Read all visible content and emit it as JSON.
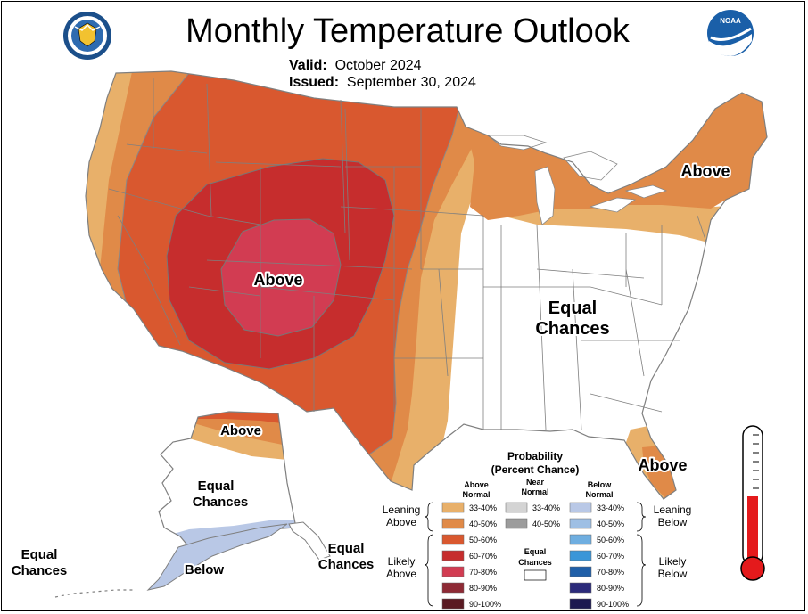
{
  "header": {
    "title": "Monthly Temperature Outlook",
    "valid_label": "Valid:",
    "valid_value": "October 2024",
    "issued_label": "Issued:",
    "issued_value": "September 30, 2024"
  },
  "logos": {
    "left": "doc-seal-icon",
    "right": "noaa-logo-icon",
    "noaa_text": "NOAA"
  },
  "map_labels": {
    "west_above": "Above",
    "northeast_above": "Above",
    "florida_above": "Above",
    "east_equal_line1": "Equal",
    "east_equal_line2": "Chances",
    "alaska_above": "Above",
    "alaska_equal_line1": "Equal",
    "alaska_equal_line2": "Chances",
    "alaska_below": "Below",
    "aleutian_equal_line1": "Equal",
    "aleutian_equal_line2": "Chances",
    "southeast_ak_equal_line1": "Equal",
    "southeast_ak_equal_line2": "Chances"
  },
  "legend": {
    "title_line1": "Probability",
    "title_line2": "(Percent Chance)",
    "col_above_line1": "Above",
    "col_above_line2": "Normal",
    "col_near_line1": "Near",
    "col_near_line2": "Normal",
    "col_below_line1": "Below",
    "col_below_line2": "Normal",
    "leaning_above_line1": "Leaning",
    "leaning_above_line2": "Above",
    "likely_above_line1": "Likely",
    "likely_above_line2": "Above",
    "leaning_below_line1": "Leaning",
    "leaning_below_line2": "Below",
    "likely_below_line1": "Likely",
    "likely_below_line2": "Below",
    "equal_line1": "Equal",
    "equal_line2": "Chances",
    "above": [
      {
        "label": "33-40%",
        "color": "#E8B06A"
      },
      {
        "label": "40-50%",
        "color": "#E08A48"
      },
      {
        "label": "50-60%",
        "color": "#D9582F"
      },
      {
        "label": "60-70%",
        "color": "#C62D2D"
      },
      {
        "label": "70-80%",
        "color": "#D23C52"
      },
      {
        "label": "80-90%",
        "color": "#8E2A35"
      },
      {
        "label": "90-100%",
        "color": "#5A1A22"
      }
    ],
    "near": [
      {
        "label": "33-40%",
        "color": "#D4D4D4"
      },
      {
        "label": "40-50%",
        "color": "#9C9C9C"
      }
    ],
    "below": [
      {
        "label": "33-40%",
        "color": "#B9C8E6"
      },
      {
        "label": "40-50%",
        "color": "#9EBFE4"
      },
      {
        "label": "50-60%",
        "color": "#6FAEE0"
      },
      {
        "label": "60-70%",
        "color": "#3A96D8"
      },
      {
        "label": "70-80%",
        "color": "#1F5FA8"
      },
      {
        "label": "80-90%",
        "color": "#2B2A7A"
      },
      {
        "label": "90-100%",
        "color": "#1C1850"
      }
    ],
    "equal_color": "#FFFFFF"
  },
  "thermometer": {
    "icon": "thermometer-icon",
    "fill_color": "#E41A1C"
  }
}
